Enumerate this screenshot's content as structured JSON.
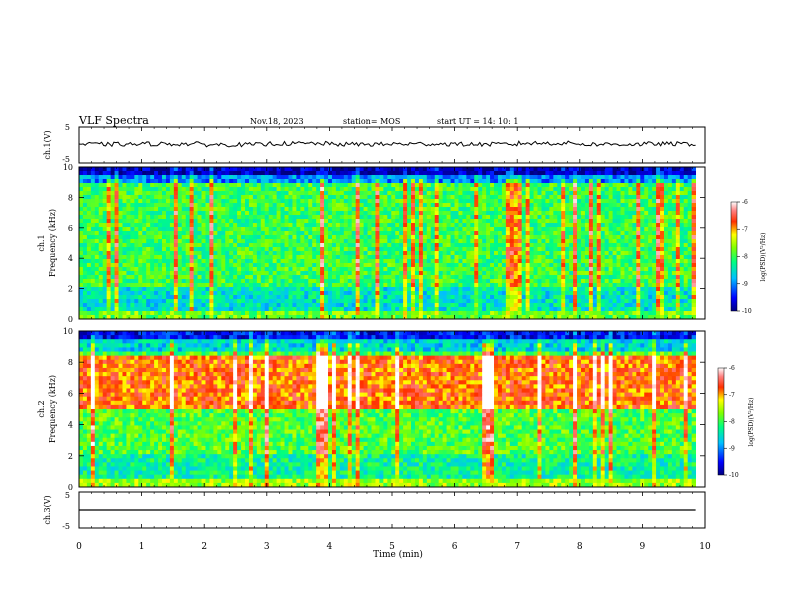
{
  "header": {
    "title": "VLF Spectra",
    "date": "Nov.18, 2023",
    "station": "station= MOS",
    "start": "start  UT =   14: 10: 1"
  },
  "chart_data": [
    {
      "type": "line",
      "panel": "ch1-waveform",
      "ylabel": "ch.1(V)",
      "ylim": [
        -5,
        5
      ],
      "yticks": [
        "5",
        "-5"
      ],
      "series": [
        {
          "values": [
            0.2,
            0.3,
            0.1,
            0.4,
            0.2,
            0.3,
            0.2,
            0.5,
            0.2,
            0.3
          ]
        }
      ]
    },
    {
      "type": "heatmap",
      "panel": "ch1-spectrogram",
      "ylabel": "ch.1\nFrequency (kHz)",
      "ylim": [
        0,
        10
      ],
      "yticks": [
        "0",
        "2",
        "4",
        "6",
        "8",
        "10"
      ],
      "colorbar": {
        "label": "log(PSD)(V²/Hz)",
        "range": [
          -10,
          -6
        ],
        "ticks": [
          "-6",
          "-7",
          "-8",
          "-9",
          "-10"
        ]
      },
      "description_levels": {
        "low_band_0_2kHz": -8.5,
        "mid_band_2_9kHz": -8.0,
        "top_band_9_10kHz": -9.8
      }
    },
    {
      "type": "heatmap",
      "panel": "ch2-spectrogram",
      "ylabel": "ch.2\nFrequency (kHz)",
      "ylim": [
        0,
        10
      ],
      "yticks": [
        "0",
        "2",
        "4",
        "6",
        "8",
        "10"
      ],
      "colorbar": {
        "label": "log(PSD)(V²/Hz)",
        "range": [
          -10,
          -6
        ],
        "ticks": [
          "-6",
          "-7",
          "-8",
          "-9",
          "-10"
        ]
      },
      "description_levels": {
        "low_band_0_2kHz": -8.3,
        "mid_band_5_8kHz": -6.8,
        "top_band_9_10kHz": -9.5
      }
    },
    {
      "type": "line",
      "panel": "ch3-waveform",
      "ylabel": "ch.3(V)",
      "ylim": [
        -5,
        5
      ],
      "yticks": [
        "5",
        "-5"
      ],
      "series": [
        {
          "values": [
            0,
            0,
            0,
            0,
            0,
            0,
            0,
            0,
            0,
            0
          ]
        }
      ]
    }
  ],
  "xaxis": {
    "label": "Time (min)",
    "xlim": [
      0,
      10
    ],
    "ticks": [
      "0",
      "1",
      "2",
      "3",
      "4",
      "5",
      "6",
      "7",
      "8",
      "9",
      "10"
    ],
    "data_end": 9.85
  },
  "colors": [
    "#000080",
    "#0000ff",
    "#00a0ff",
    "#00ffff",
    "#00ff80",
    "#80ff00",
    "#ffff00",
    "#ff8000",
    "#ff0000",
    "#ffb0b0",
    "#ffffff"
  ]
}
